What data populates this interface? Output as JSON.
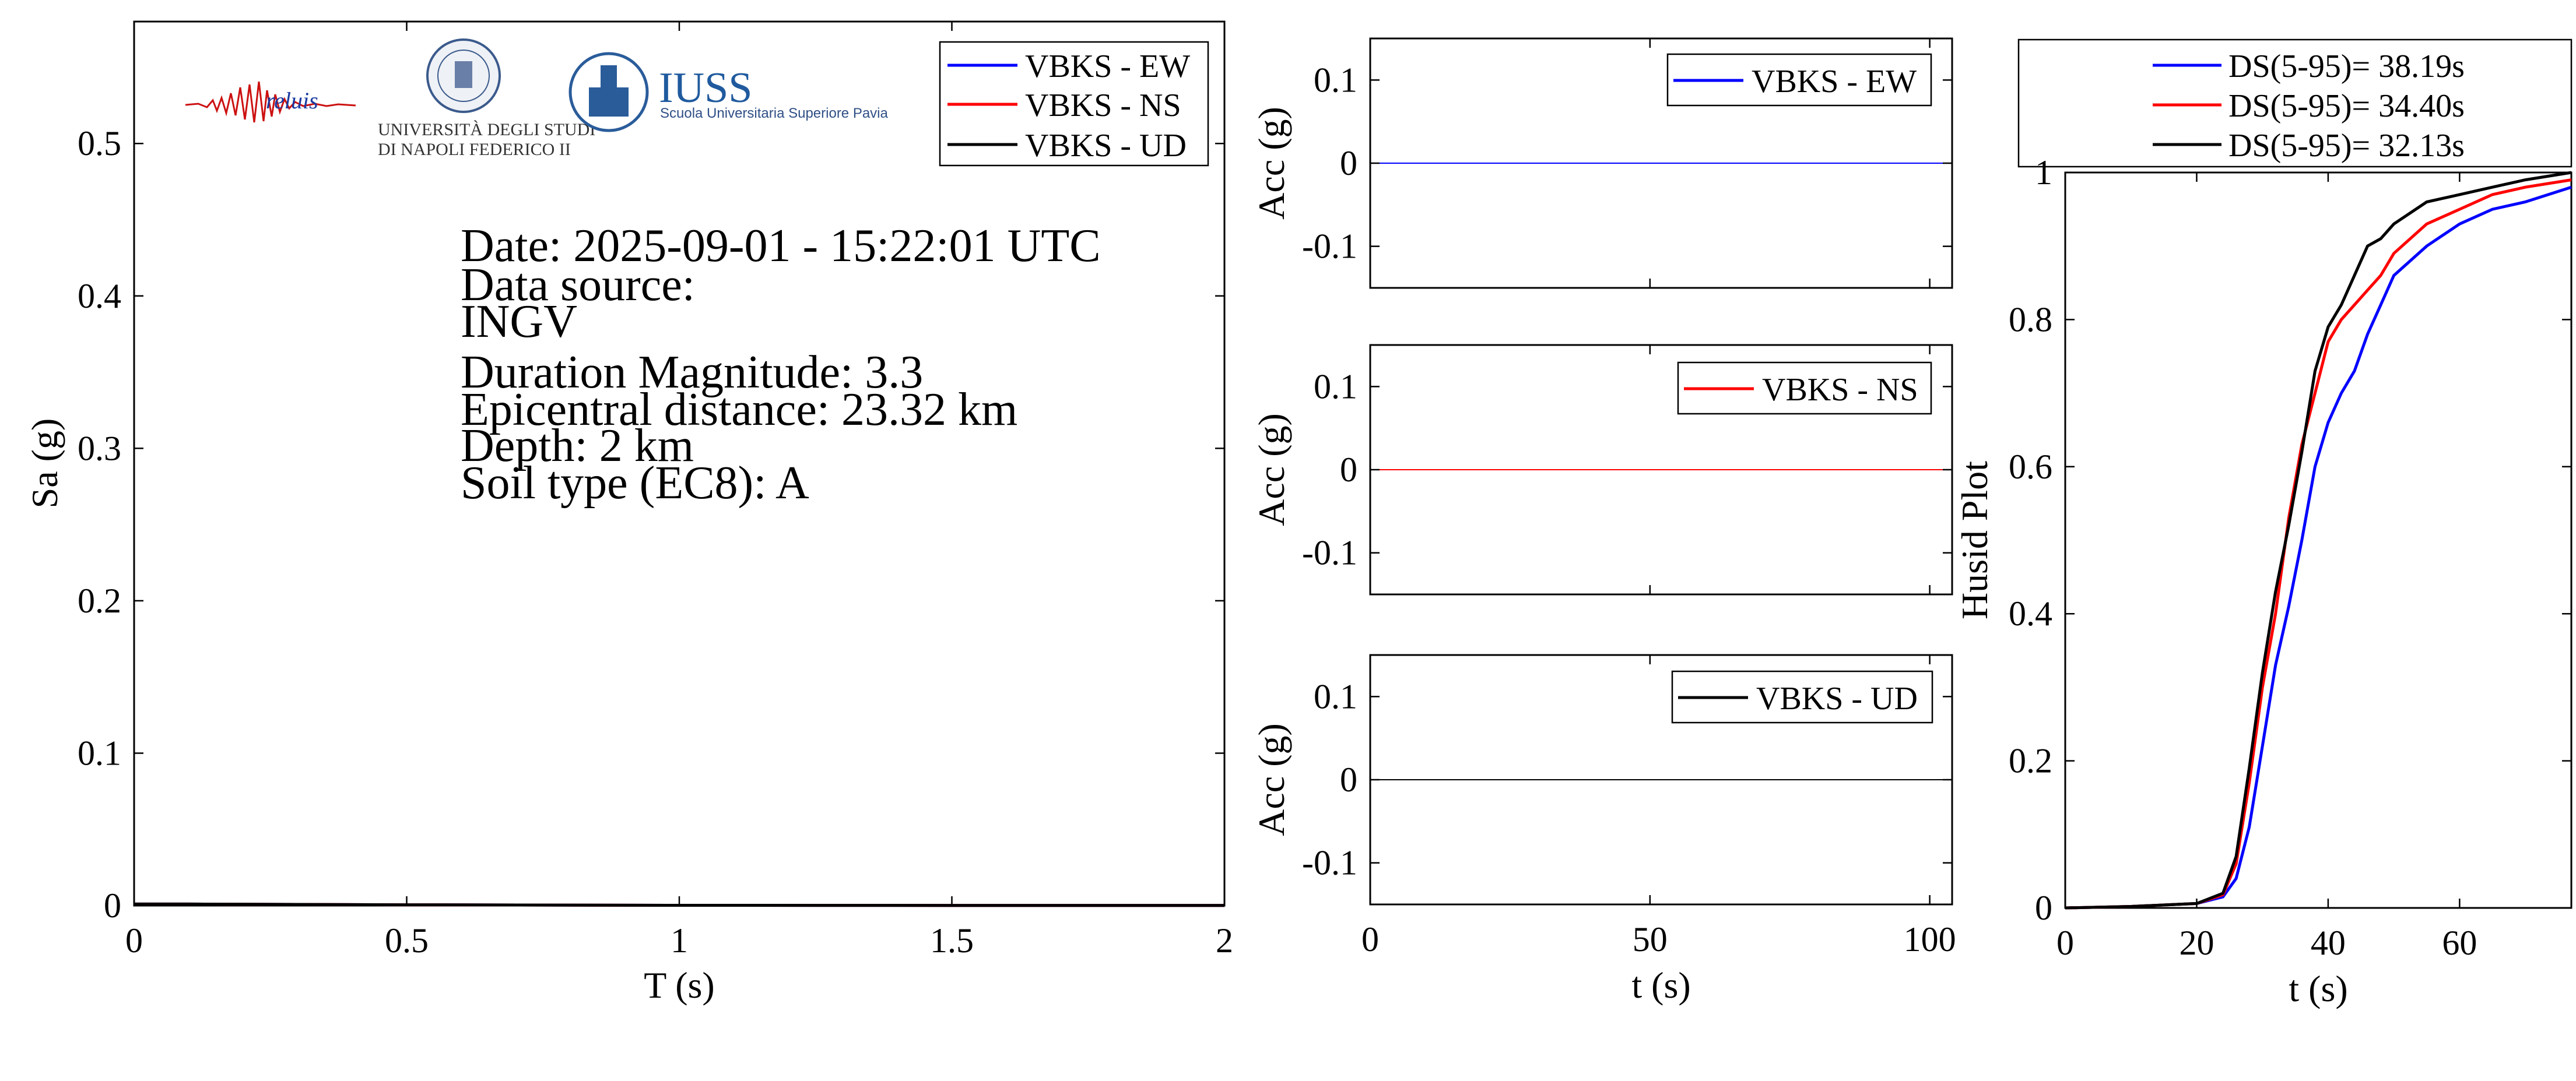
{
  "info": {
    "date": "Date: 2025-09-01 - 15:22:01 UTC",
    "data_source": "Data source:",
    "agency": "INGV",
    "magnitude": "Duration Magnitude: 3.3",
    "distance": "Epicentral distance: 23.32 km",
    "depth": "Depth: 2 km",
    "soil": "Soil type (EC8): A"
  },
  "logos": {
    "reluis": "reluis",
    "unina_line1": "UNIVERSITÀ DEGLI STUDI",
    "unina_line2": "DI NAPOLI FEDERICO II",
    "iuss": "IUSS",
    "iuss_sub": "Scuola Universitaria Superiore Pavia"
  },
  "colors": {
    "ew": "#0000ff",
    "ns": "#ff0000",
    "ud": "#000000"
  },
  "chart_data": [
    {
      "id": "spectrum",
      "type": "line",
      "xlabel": "T (s)",
      "ylabel": "Sa (g)",
      "xlim": [
        0,
        2
      ],
      "ylim": [
        0,
        0.58
      ],
      "xticks": [
        0,
        0.5,
        1,
        1.5,
        2
      ],
      "xtick_labels": [
        "0",
        "0.5",
        "1",
        "1.5",
        "2"
      ],
      "yticks": [
        0,
        0.1,
        0.2,
        0.3,
        0.4,
        0.5
      ],
      "ytick_labels": [
        "0",
        "0.1",
        "0.2",
        "0.3",
        "0.4",
        "0.5"
      ],
      "legend_position": "top-right",
      "series": [
        {
          "name": "VBKS - EW",
          "color": "#0000ff",
          "x": [
            0,
            0.1,
            0.5,
            1,
            1.5,
            2
          ],
          "y": [
            0.001,
            0.001,
            0.0005,
            0.0002,
            0.0001,
            0.0001
          ]
        },
        {
          "name": "VBKS - NS",
          "color": "#ff0000",
          "x": [
            0,
            0.1,
            0.5,
            1,
            1.5,
            2
          ],
          "y": [
            0.001,
            0.001,
            0.0005,
            0.0002,
            0.0001,
            0.0001
          ]
        },
        {
          "name": "VBKS - UD",
          "color": "#000000",
          "x": [
            0,
            0.1,
            0.5,
            1,
            1.5,
            2
          ],
          "y": [
            0.001,
            0.001,
            0.0005,
            0.0002,
            0.0001,
            0.0001
          ]
        }
      ]
    },
    {
      "id": "acc-ew",
      "type": "line",
      "xlabel": "",
      "ylabel": "Acc (g)",
      "xlim": [
        0,
        104
      ],
      "ylim": [
        -0.15,
        0.15
      ],
      "xticks": [
        0,
        50,
        100
      ],
      "xtick_labels": [],
      "yticks": [
        -0.1,
        0,
        0.1
      ],
      "ytick_labels": [
        "-0.1",
        "0",
        "0.1"
      ],
      "legend_position": "top-right",
      "series": [
        {
          "name": "VBKS - EW",
          "color": "#0000ff",
          "x": [
            0,
            104
          ],
          "y": [
            0,
            0
          ]
        }
      ]
    },
    {
      "id": "acc-ns",
      "type": "line",
      "xlabel": "",
      "ylabel": "Acc (g)",
      "xlim": [
        0,
        104
      ],
      "ylim": [
        -0.15,
        0.15
      ],
      "xticks": [
        0,
        50,
        100
      ],
      "xtick_labels": [],
      "yticks": [
        -0.1,
        0,
        0.1
      ],
      "ytick_labels": [
        "-0.1",
        "0",
        "0.1"
      ],
      "legend_position": "top-right",
      "series": [
        {
          "name": "VBKS - NS",
          "color": "#ff0000",
          "x": [
            0,
            104
          ],
          "y": [
            0,
            0
          ]
        }
      ]
    },
    {
      "id": "acc-ud",
      "type": "line",
      "xlabel": "t (s)",
      "ylabel": "Acc (g)",
      "xlim": [
        0,
        104
      ],
      "ylim": [
        -0.15,
        0.15
      ],
      "xticks": [
        0,
        50,
        100
      ],
      "xtick_labels": [
        "0",
        "50",
        "100"
      ],
      "yticks": [
        -0.1,
        0,
        0.1
      ],
      "ytick_labels": [
        "-0.1",
        "0",
        "0.1"
      ],
      "legend_position": "top-right",
      "series": [
        {
          "name": "VBKS - UD",
          "color": "#000000",
          "x": [
            0,
            104
          ],
          "y": [
            0,
            0
          ]
        }
      ]
    },
    {
      "id": "husid",
      "type": "line",
      "xlabel": "t (s)",
      "ylabel": "Husid Plot",
      "xlim": [
        0,
        77
      ],
      "ylim": [
        0,
        1
      ],
      "xticks": [
        0,
        20,
        40,
        60
      ],
      "xtick_labels": [
        "0",
        "20",
        "40",
        "60"
      ],
      "yticks": [
        0,
        0.2,
        0.4,
        0.6,
        0.8,
        1
      ],
      "ytick_labels": [
        "0",
        "0.2",
        "0.4",
        "0.6",
        "0.8",
        "1"
      ],
      "legend_position": "above",
      "series": [
        {
          "name": "DS(5-95)= 38.19s",
          "color": "#0000ff",
          "x": [
            0,
            10,
            20,
            24,
            26,
            28,
            30,
            32,
            34,
            36,
            38,
            40,
            42,
            44,
            46,
            48,
            50,
            55,
            60,
            65,
            70,
            77
          ],
          "y": [
            0,
            0.002,
            0.006,
            0.015,
            0.04,
            0.11,
            0.22,
            0.33,
            0.41,
            0.5,
            0.6,
            0.66,
            0.7,
            0.73,
            0.78,
            0.82,
            0.86,
            0.9,
            0.93,
            0.95,
            0.96,
            0.98
          ]
        },
        {
          "name": "DS(5-95)= 34.40s",
          "color": "#ff0000",
          "x": [
            0,
            10,
            20,
            24,
            26,
            28,
            30,
            32,
            34,
            36,
            38,
            40,
            42,
            44,
            46,
            48,
            50,
            55,
            60,
            65,
            70,
            77
          ],
          "y": [
            0,
            0.002,
            0.006,
            0.018,
            0.06,
            0.17,
            0.3,
            0.4,
            0.53,
            0.63,
            0.7,
            0.77,
            0.8,
            0.82,
            0.84,
            0.86,
            0.89,
            0.93,
            0.95,
            0.97,
            0.98,
            0.99
          ]
        },
        {
          "name": "DS(5-95)= 32.13s",
          "color": "#000000",
          "x": [
            0,
            10,
            20,
            24,
            26,
            28,
            30,
            32,
            34,
            36,
            38,
            40,
            42,
            44,
            46,
            48,
            50,
            55,
            60,
            65,
            70,
            77
          ],
          "y": [
            0,
            0.002,
            0.006,
            0.02,
            0.07,
            0.19,
            0.32,
            0.43,
            0.52,
            0.62,
            0.73,
            0.79,
            0.82,
            0.86,
            0.9,
            0.91,
            0.93,
            0.96,
            0.97,
            0.98,
            0.99,
            1.0
          ]
        }
      ]
    }
  ]
}
